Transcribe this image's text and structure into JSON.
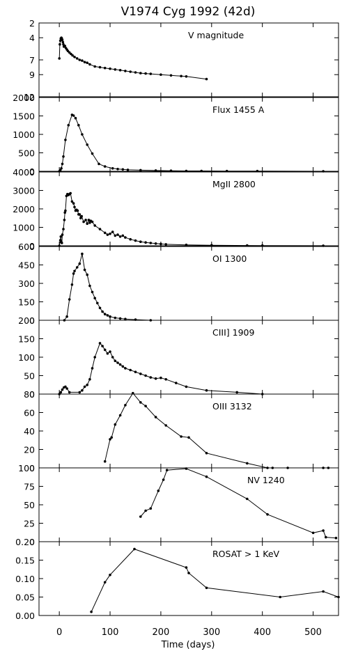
{
  "figure": {
    "title": "V1974 Cyg 1992 (42d)",
    "xlabel": "Time  (days)"
  },
  "chart_data": [
    {
      "type": "line",
      "label": "V magnitude",
      "invert_y": true,
      "ylim": [
        12,
        2
      ],
      "yticks": [
        2,
        4,
        7,
        9,
        12
      ],
      "xlim": [
        -40,
        550
      ],
      "xticks": [
        0,
        100,
        200,
        300,
        400,
        500
      ],
      "x": [
        0,
        1,
        2,
        3,
        4,
        5,
        6,
        7,
        8,
        9,
        11,
        13,
        15,
        17,
        20,
        23,
        26,
        30,
        35,
        40,
        45,
        50,
        55,
        60,
        70,
        80,
        90,
        100,
        110,
        120,
        130,
        140,
        150,
        160,
        170,
        180,
        200,
        220,
        240,
        250,
        290
      ],
      "y": [
        6.8,
        4.9,
        4.4,
        4.1,
        4.0,
        4.1,
        4.3,
        4.6,
        4.9,
        5.2,
        5.1,
        5.4,
        5.6,
        5.8,
        6.0,
        6.2,
        6.4,
        6.6,
        6.8,
        7.0,
        7.1,
        7.3,
        7.4,
        7.6,
        7.9,
        8.0,
        8.1,
        8.2,
        8.3,
        8.4,
        8.5,
        8.6,
        8.7,
        8.8,
        8.85,
        8.9,
        9.0,
        9.1,
        9.2,
        9.25,
        9.6
      ]
    },
    {
      "type": "line",
      "label": "Flux 1455 A",
      "ylim": [
        0,
        2000
      ],
      "yticks": [
        0,
        500,
        1000,
        1500,
        2000
      ],
      "xlim": [
        -40,
        550
      ],
      "xticks": [
        0,
        100,
        200,
        300,
        400,
        500
      ],
      "x": [
        0,
        2,
        4,
        6,
        8,
        12,
        18,
        25,
        28,
        32,
        38,
        45,
        55,
        65,
        78,
        90,
        105,
        115,
        125,
        135,
        160,
        190,
        220,
        250,
        280,
        330,
        390,
        520
      ],
      "y": [
        0,
        30,
        80,
        200,
        400,
        850,
        1250,
        1530,
        1510,
        1440,
        1250,
        1000,
        720,
        480,
        200,
        130,
        80,
        60,
        50,
        40,
        30,
        20,
        15,
        10,
        10,
        5,
        5,
        0
      ]
    },
    {
      "type": "line",
      "label": "MgII 2800",
      "ylim": [
        0,
        4000
      ],
      "yticks": [
        0,
        1000,
        2000,
        3000,
        4000
      ],
      "xlim": [
        -40,
        550
      ],
      "xticks": [
        0,
        100,
        200,
        300,
        400,
        500
      ],
      "x": [
        0,
        2,
        3,
        4,
        5,
        6,
        8,
        10,
        11,
        12,
        14,
        16,
        18,
        20,
        22,
        25,
        28,
        30,
        32,
        34,
        36,
        38,
        40,
        42,
        44,
        48,
        52,
        55,
        58,
        60,
        62,
        65,
        70,
        80,
        90,
        95,
        100,
        105,
        110,
        115,
        120,
        125,
        130,
        140,
        150,
        160,
        170,
        180,
        190,
        200,
        210,
        250,
        300,
        370,
        400,
        520
      ],
      "y": [
        0,
        300,
        500,
        200,
        150,
        600,
        900,
        1400,
        1800,
        1900,
        2700,
        2800,
        2750,
        2800,
        2850,
        2400,
        2300,
        2100,
        1900,
        1950,
        1900,
        1700,
        1700,
        1500,
        1600,
        1300,
        1400,
        1200,
        1400,
        1250,
        1350,
        1300,
        1100,
        900,
        700,
        600,
        650,
        750,
        550,
        600,
        500,
        550,
        450,
        350,
        280,
        220,
        180,
        150,
        120,
        100,
        80,
        50,
        30,
        15,
        10,
        5
      ]
    },
    {
      "type": "line",
      "label": "OI 1300",
      "ylim": [
        0,
        600
      ],
      "yticks": [
        0,
        150,
        300,
        450,
        600
      ],
      "xlim": [
        -40,
        550
      ],
      "xticks": [
        0,
        100,
        200,
        300,
        400,
        500
      ],
      "x": [
        10,
        15,
        20,
        25,
        28,
        30,
        35,
        40,
        45,
        50,
        55,
        60,
        65,
        70,
        75,
        80,
        85,
        90,
        95,
        100,
        110,
        120,
        130,
        150,
        180
      ],
      "y": [
        0,
        30,
        170,
        290,
        380,
        400,
        430,
        460,
        540,
        410,
        370,
        280,
        230,
        180,
        140,
        100,
        70,
        50,
        40,
        30,
        20,
        15,
        10,
        5,
        0
      ]
    },
    {
      "type": "line",
      "label": "CIII] 1909",
      "ylim": [
        0,
        200
      ],
      "yticks": [
        0,
        50,
        100,
        150,
        200
      ],
      "xlim": [
        -40,
        550
      ],
      "xticks": [
        0,
        100,
        200,
        300,
        400,
        500
      ],
      "x": [
        0,
        3,
        6,
        9,
        12,
        15,
        20,
        40,
        45,
        50,
        55,
        60,
        65,
        70,
        80,
        85,
        90,
        95,
        100,
        105,
        110,
        115,
        120,
        125,
        130,
        140,
        150,
        160,
        170,
        180,
        190,
        200,
        210,
        230,
        250,
        290,
        350,
        400
      ],
      "y": [
        0,
        5,
        12,
        18,
        20,
        15,
        5,
        5,
        10,
        20,
        25,
        40,
        70,
        100,
        138,
        130,
        120,
        110,
        115,
        100,
        90,
        85,
        80,
        75,
        70,
        65,
        60,
        55,
        50,
        45,
        42,
        44,
        40,
        30,
        20,
        10,
        5,
        0
      ]
    },
    {
      "type": "line",
      "label": "OIII 3132",
      "ylim": [
        0,
        80
      ],
      "yticks": [
        0,
        20,
        40,
        60,
        80
      ],
      "xlim": [
        -40,
        550
      ],
      "xticks": [
        0,
        100,
        200,
        300,
        400,
        500
      ],
      "x": [
        90,
        100,
        103,
        110,
        120,
        130,
        145,
        160,
        170,
        190,
        210,
        240,
        255,
        290,
        370,
        410,
        420,
        450,
        520,
        530
      ],
      "y": [
        7,
        31,
        33,
        47,
        57,
        68,
        81,
        71,
        67,
        55,
        46,
        34,
        33,
        16,
        5,
        0,
        0,
        0,
        0,
        0
      ]
    },
    {
      "type": "line",
      "label": "NV 1240",
      "ylim": [
        0,
        100
      ],
      "yticks": [
        0,
        25,
        50,
        75,
        100
      ],
      "xlim": [
        -40,
        550
      ],
      "xticks": [
        0,
        100,
        200,
        300,
        400,
        500
      ],
      "x": [
        160,
        170,
        180,
        195,
        205,
        212,
        250,
        290,
        370,
        410,
        500,
        520,
        525,
        545
      ],
      "y": [
        34,
        42,
        45,
        69,
        84,
        97,
        99,
        88,
        58,
        37,
        12,
        15,
        6,
        5
      ]
    },
    {
      "type": "line",
      "label": "ROSAT > 1 KeV",
      "ylim": [
        0,
        0.2
      ],
      "yticks": [
        0.0,
        0.05,
        0.1,
        0.15,
        0.2
      ],
      "xlim": [
        -40,
        550
      ],
      "xticks": [
        0,
        100,
        200,
        300,
        400,
        500
      ],
      "x": [
        63,
        90,
        100,
        148,
        250,
        255,
        290,
        435,
        520,
        550
      ],
      "y": [
        0.01,
        0.09,
        0.11,
        0.18,
        0.13,
        0.115,
        0.075,
        0.05,
        0.065,
        0.05
      ]
    }
  ]
}
